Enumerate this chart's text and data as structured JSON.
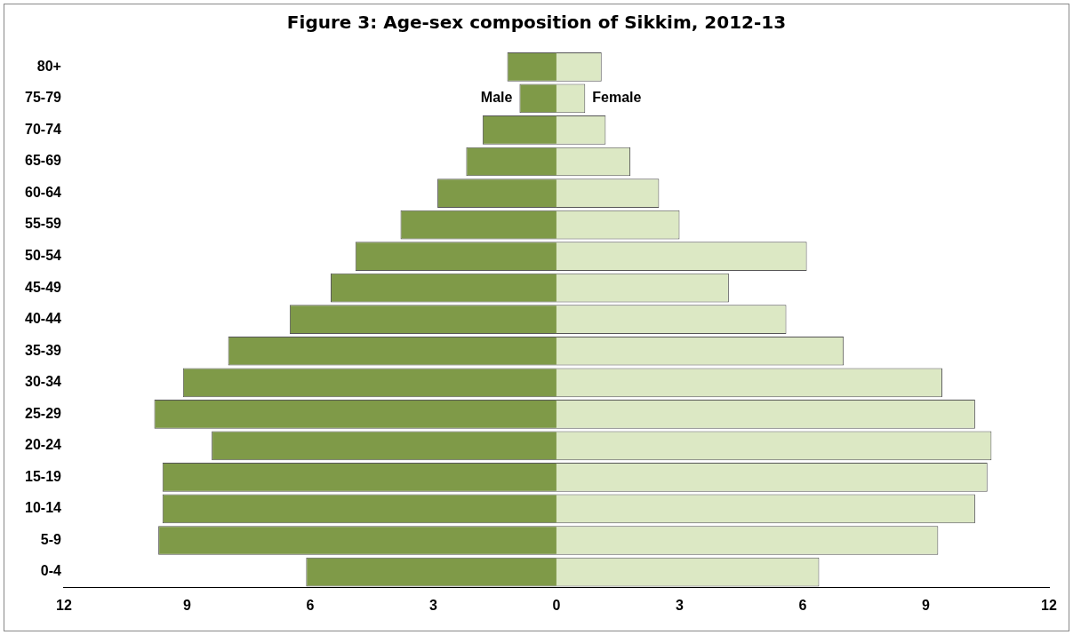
{
  "chart_data": {
    "type": "bar",
    "orientation": "horizontal",
    "stacked": true,
    "title": "Figure 3: Age-sex composition of Sikkim, 2012-13",
    "categories": [
      "80+",
      "75-79",
      "70-74",
      "65-69",
      "60-64",
      "55-59",
      "50-54",
      "45-49",
      "40-44",
      "35-39",
      "30-34",
      "25-29",
      "20-24",
      "15-19",
      "10-14",
      "5-9",
      "0-4"
    ],
    "series": [
      {
        "name": "Male",
        "color": "#7f9a48",
        "values": [
          -1.2,
          -0.9,
          -1.8,
          -2.2,
          -2.9,
          -3.8,
          -4.9,
          -5.5,
          -6.5,
          -8.0,
          -9.1,
          -9.8,
          -8.4,
          -9.6,
          -9.6,
          -9.7,
          -6.1
        ]
      },
      {
        "name": "Female",
        "color": "#dce8c4",
        "values": [
          1.1,
          0.7,
          1.2,
          1.8,
          2.5,
          3.0,
          6.1,
          4.2,
          5.6,
          7.0,
          9.4,
          10.2,
          10.6,
          10.5,
          10.2,
          9.3,
          6.4
        ]
      }
    ],
    "xlim": [
      -12,
      12
    ],
    "xticks": [
      {
        "value": -12,
        "label": "12"
      },
      {
        "value": -9,
        "label": "9"
      },
      {
        "value": -6,
        "label": "6"
      },
      {
        "value": -3,
        "label": "3"
      },
      0,
      3,
      6,
      9,
      12
    ],
    "grid": false,
    "legend": false
  }
}
